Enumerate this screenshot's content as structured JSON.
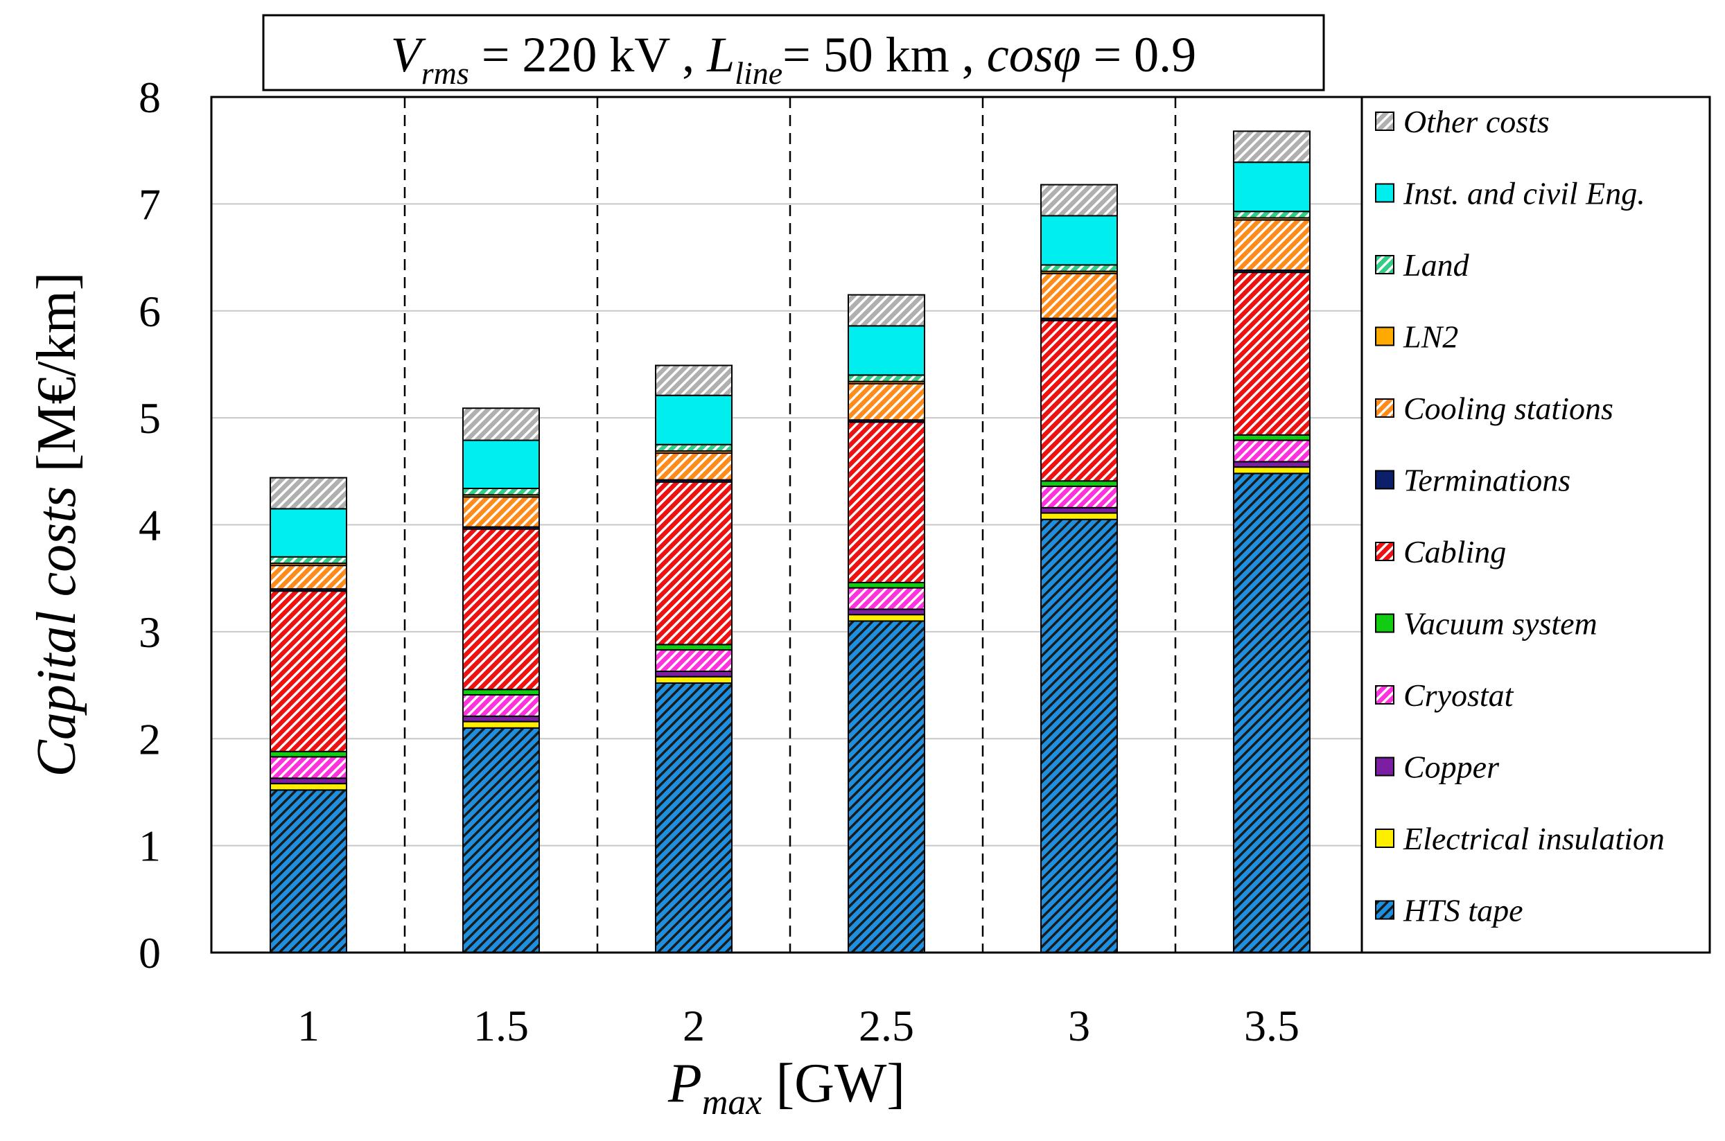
{
  "chart_data": {
    "type": "bar",
    "stacked": true,
    "title": {
      "v_sym": "V",
      "v_sub": "rms",
      "v_val": " = 220 kV  ,  ",
      "l_sym": "L",
      "l_sub": "line",
      "l_val": "= 50 km  ,  ",
      "cos_sym": "cosφ",
      "cos_val": " = 0.9"
    },
    "xlabel": {
      "sym": "P",
      "sub": "max",
      "unit": " [GW]"
    },
    "ylabel": {
      "main": "Capital costs",
      "unit": " [M€/km]"
    },
    "ylim": [
      0,
      8
    ],
    "yticks": [
      "0",
      "1",
      "2",
      "3",
      "4",
      "5",
      "6",
      "7",
      "8"
    ],
    "categories": [
      "1",
      "1.5",
      "2",
      "2.5",
      "3",
      "3.5"
    ],
    "grid": true,
    "legend_position": "right",
    "series": [
      {
        "name": "HTS tape",
        "color": "#1f8fe0",
        "hatch": "dark-diag",
        "values": [
          1.52,
          2.1,
          2.52,
          3.1,
          4.05,
          4.48
        ]
      },
      {
        "name": "Electrical insulation",
        "color": "#ffee00",
        "hatch": "none",
        "values": [
          0.06,
          0.06,
          0.06,
          0.06,
          0.06,
          0.06
        ]
      },
      {
        "name": "Copper",
        "color": "#7b1fa2",
        "hatch": "none",
        "values": [
          0.05,
          0.05,
          0.05,
          0.05,
          0.05,
          0.05
        ]
      },
      {
        "name": "Cryostat",
        "color": "#ff33dd",
        "hatch": "light-diag",
        "values": [
          0.2,
          0.2,
          0.2,
          0.2,
          0.2,
          0.2
        ]
      },
      {
        "name": "Vacuum system",
        "color": "#11cc11",
        "hatch": "none",
        "values": [
          0.05,
          0.05,
          0.05,
          0.05,
          0.05,
          0.05
        ]
      },
      {
        "name": "Cabling",
        "color": "#ee1111",
        "hatch": "light-diag",
        "values": [
          1.5,
          1.5,
          1.52,
          1.5,
          1.5,
          1.52
        ]
      },
      {
        "name": "Terminations",
        "color": "#0b1f6b",
        "hatch": "none",
        "values": [
          0.02,
          0.02,
          0.02,
          0.02,
          0.02,
          0.02
        ]
      },
      {
        "name": "Cooling stations",
        "color": "#ff8c1a",
        "hatch": "light-diag",
        "values": [
          0.22,
          0.28,
          0.25,
          0.34,
          0.42,
          0.47
        ]
      },
      {
        "name": "LN2",
        "color": "#ffaa00",
        "hatch": "none",
        "values": [
          0.02,
          0.02,
          0.02,
          0.02,
          0.02,
          0.02
        ]
      },
      {
        "name": "Land",
        "color": "#33cc88",
        "hatch": "light-diag",
        "values": [
          0.06,
          0.06,
          0.06,
          0.06,
          0.06,
          0.06
        ]
      },
      {
        "name": "Inst. and civil Eng.",
        "color": "#00eeee",
        "hatch": "none",
        "values": [
          0.45,
          0.45,
          0.46,
          0.46,
          0.46,
          0.46
        ]
      },
      {
        "name": "Other costs",
        "color": "#b0b0b0",
        "hatch": "light-diag",
        "values": [
          0.29,
          0.3,
          0.28,
          0.29,
          0.29,
          0.29
        ]
      }
    ],
    "legend_order": [
      "Other costs",
      "Inst. and civil Eng.",
      "Land",
      "LN2",
      "Cooling stations",
      "Terminations",
      "Cabling",
      "Vacuum system",
      "Cryostat",
      "Copper",
      "Electrical insulation",
      "HTS tape"
    ]
  }
}
